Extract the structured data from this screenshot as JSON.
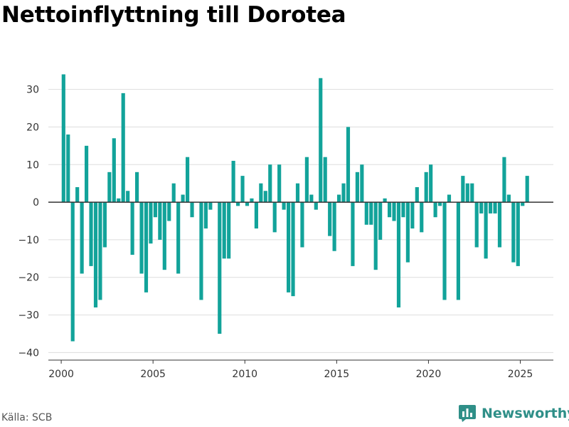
{
  "title": "Nettoinflyttning till Dorotea",
  "source": "Källa: SCB",
  "brand": {
    "name": "Newsworthy",
    "icon": "bar-chart-logo-icon"
  },
  "colors": {
    "bar": "#12a39a",
    "brand": "#2f8f88",
    "grid": "#dddddd",
    "zero": "#333333"
  },
  "chart_data": {
    "type": "bar",
    "title": "Nettoinflyttning till Dorotea",
    "xlabel": "",
    "ylabel": "",
    "grid": true,
    "legend": "none",
    "ylim": [
      -42,
      37
    ],
    "xlim": [
      1999.3,
      2026.8
    ],
    "y_ticks": [
      -40,
      -30,
      -20,
      -10,
      0,
      10,
      20,
      30
    ],
    "x_ticks": [
      2000,
      2005,
      2010,
      2015,
      2020,
      2025
    ],
    "bar_width_years": 0.2,
    "x": [
      2000.125,
      2000.375,
      2000.625,
      2000.875,
      2001.125,
      2001.375,
      2001.625,
      2001.875,
      2002.125,
      2002.375,
      2002.625,
      2002.875,
      2003.125,
      2003.375,
      2003.625,
      2003.875,
      2004.125,
      2004.375,
      2004.625,
      2004.875,
      2005.125,
      2005.375,
      2005.625,
      2005.875,
      2006.125,
      2006.375,
      2006.625,
      2006.875,
      2007.125,
      2007.375,
      2007.625,
      2007.875,
      2008.125,
      2008.375,
      2008.625,
      2008.875,
      2009.125,
      2009.375,
      2009.625,
      2009.875,
      2010.125,
      2010.375,
      2010.625,
      2010.875,
      2011.125,
      2011.375,
      2011.625,
      2011.875,
      2012.125,
      2012.375,
      2012.625,
      2012.875,
      2013.125,
      2013.375,
      2013.625,
      2013.875,
      2014.125,
      2014.375,
      2014.625,
      2014.875,
      2015.125,
      2015.375,
      2015.625,
      2015.875,
      2016.125,
      2016.375,
      2016.625,
      2016.875,
      2017.125,
      2017.375,
      2017.625,
      2017.875,
      2018.125,
      2018.375,
      2018.625,
      2018.875,
      2019.125,
      2019.375,
      2019.625,
      2019.875,
      2020.125,
      2020.375,
      2020.625,
      2020.875,
      2021.125,
      2021.375,
      2021.625,
      2021.875,
      2022.125,
      2022.375,
      2022.625,
      2022.875,
      2023.125,
      2023.375,
      2023.625,
      2023.875,
      2024.125,
      2024.375,
      2024.625,
      2024.875,
      2025.125,
      2025.375
    ],
    "values": [
      34,
      18,
      -37,
      4,
      -19,
      15,
      -17,
      -28,
      -26,
      -12,
      8,
      17,
      1,
      29,
      3,
      -14,
      8,
      -19,
      -24,
      -11,
      -4,
      -10,
      -18,
      -5,
      5,
      -19,
      2,
      12,
      -4,
      0,
      -26,
      -7,
      -2,
      0,
      -35,
      -15,
      -15,
      11,
      -1,
      7,
      -1,
      1,
      -7,
      5,
      3,
      10,
      -8,
      10,
      -2,
      -24,
      -25,
      5,
      -12,
      12,
      2,
      -2,
      33,
      12,
      -9,
      -13,
      2,
      5,
      20,
      -17,
      8,
      10,
      -6,
      -6,
      -18,
      -10,
      1,
      -4,
      -5,
      -28,
      -4,
      -16,
      -7,
      4,
      -8,
      8,
      10,
      -4,
      -1,
      -26,
      2,
      0,
      -26,
      7,
      5,
      5,
      -12,
      -3,
      -15,
      -3,
      -3,
      -12,
      12,
      2,
      -16,
      -17,
      -1,
      7
    ]
  }
}
